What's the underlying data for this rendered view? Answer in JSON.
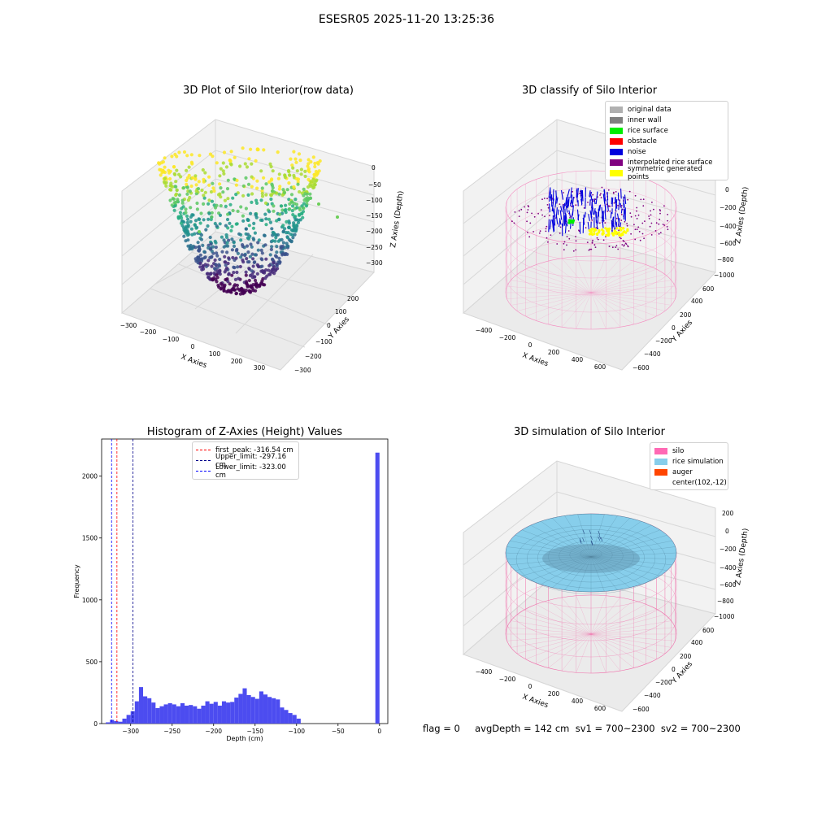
{
  "figure": {
    "title": "ESESR05 2025-11-20 13:25:36",
    "footer": "flag = 0     avgDepth = 142 cm  sv1 = 700~2300  sv2 = 700~2300"
  },
  "chart_data": [
    {
      "type": "scatter",
      "subtype": "3d",
      "title": "3D Plot of Silo Interior(row data)",
      "xlabel": "X Axies",
      "ylabel": "Y Axies",
      "zlabel": "Z Axies (Depth)",
      "xticks": [
        "−300",
        "−200",
        "−100",
        "0",
        "100",
        "200",
        "300"
      ],
      "yticks": [
        "−300",
        "−200",
        "−100",
        "0",
        "100",
        "200"
      ],
      "zticks": [
        "0",
        "−50",
        "−100",
        "−150",
        "−200",
        "−250",
        "−300"
      ],
      "xlim": [
        -320,
        340
      ],
      "ylim": [
        -320,
        260
      ],
      "zlim": [
        -330,
        10
      ],
      "colormap": "viridis"
    },
    {
      "type": "scatter",
      "subtype": "3d",
      "title": "3D classify of Silo Interior",
      "xlabel": "X Axies",
      "ylabel": "Y Axies",
      "zlabel": "Z Axies (Depth)",
      "xticks": [
        "−400",
        "−200",
        "0",
        "200",
        "400",
        "600"
      ],
      "yticks": [
        "−600",
        "−400",
        "−200",
        "0",
        "200",
        "400",
        "600"
      ],
      "zticks": [
        "0",
        "−200",
        "−400",
        "−600",
        "−800",
        "−1000"
      ],
      "legend": [
        {
          "label": "original data",
          "color": "#b0b0b0"
        },
        {
          "label": "inner wall",
          "color": "#808080"
        },
        {
          "label": "rice surface",
          "color": "#00ee00"
        },
        {
          "label": "obstacle",
          "color": "#ff0000"
        },
        {
          "label": "noise",
          "color": "#0000dd"
        },
        {
          "label": "interpolated rice surface",
          "color": "#800080"
        },
        {
          "label": "symmetric generated points",
          "color": "#ffff00"
        }
      ]
    },
    {
      "type": "bar",
      "subtype": "histogram",
      "title": "Histogram of Z-Axies (Height) Values",
      "xlabel": "Depth (cm)",
      "ylabel": "Frequency",
      "xlim": [
        -335,
        10
      ],
      "ylim": [
        0,
        2300
      ],
      "xticks": [
        -300,
        -250,
        -200,
        -150,
        -100,
        -50,
        0
      ],
      "yticks": [
        0,
        500,
        1000,
        1500,
        2000
      ],
      "bar_color": "#4c4cf0",
      "bin_width": 5,
      "bins": [
        {
          "x0": -330,
          "count": 10
        },
        {
          "x0": -325,
          "count": 30
        },
        {
          "x0": -320,
          "count": 20
        },
        {
          "x0": -315,
          "count": 15
        },
        {
          "x0": -310,
          "count": 40
        },
        {
          "x0": -305,
          "count": 70
        },
        {
          "x0": -300,
          "count": 100
        },
        {
          "x0": -295,
          "count": 180
        },
        {
          "x0": -290,
          "count": 295
        },
        {
          "x0": -285,
          "count": 220
        },
        {
          "x0": -280,
          "count": 205
        },
        {
          "x0": -275,
          "count": 170
        },
        {
          "x0": -270,
          "count": 125
        },
        {
          "x0": -265,
          "count": 140
        },
        {
          "x0": -260,
          "count": 155
        },
        {
          "x0": -255,
          "count": 165
        },
        {
          "x0": -250,
          "count": 155
        },
        {
          "x0": -245,
          "count": 140
        },
        {
          "x0": -240,
          "count": 165
        },
        {
          "x0": -235,
          "count": 145
        },
        {
          "x0": -230,
          "count": 150
        },
        {
          "x0": -225,
          "count": 140
        },
        {
          "x0": -220,
          "count": 120
        },
        {
          "x0": -215,
          "count": 145
        },
        {
          "x0": -210,
          "count": 180
        },
        {
          "x0": -205,
          "count": 160
        },
        {
          "x0": -200,
          "count": 175
        },
        {
          "x0": -195,
          "count": 145
        },
        {
          "x0": -190,
          "count": 180
        },
        {
          "x0": -185,
          "count": 170
        },
        {
          "x0": -180,
          "count": 175
        },
        {
          "x0": -175,
          "count": 210
        },
        {
          "x0": -170,
          "count": 240
        },
        {
          "x0": -165,
          "count": 285
        },
        {
          "x0": -160,
          "count": 230
        },
        {
          "x0": -155,
          "count": 215
        },
        {
          "x0": -150,
          "count": 200
        },
        {
          "x0": -145,
          "count": 260
        },
        {
          "x0": -140,
          "count": 235
        },
        {
          "x0": -135,
          "count": 215
        },
        {
          "x0": -130,
          "count": 205
        },
        {
          "x0": -125,
          "count": 195
        },
        {
          "x0": -120,
          "count": 130
        },
        {
          "x0": -115,
          "count": 110
        },
        {
          "x0": -110,
          "count": 85
        },
        {
          "x0": -105,
          "count": 70
        },
        {
          "x0": -100,
          "count": 40
        },
        {
          "x0": -5,
          "count": 2190
        }
      ],
      "vlines": [
        {
          "label": "first_peak: -316.54 cm",
          "x": -316.54,
          "color": "#ff0000"
        },
        {
          "label": "Upper_limit: -297.16 cm",
          "x": -297.16,
          "color": "#00008b"
        },
        {
          "label": "Lower_limit: -323.00 cm",
          "x": -323.0,
          "color": "#0000ff"
        }
      ]
    },
    {
      "type": "area",
      "subtype": "3d-surface",
      "title": "3D simulation of Silo Interior",
      "xlabel": "X Axies",
      "ylabel": "Y Axies",
      "zlabel": "Z Axies (Depth)",
      "xticks": [
        "−400",
        "−200",
        "0",
        "200",
        "400",
        "600"
      ],
      "yticks": [
        "−600",
        "−400",
        "−200",
        "0",
        "200",
        "400",
        "600"
      ],
      "zticks": [
        "200",
        "0",
        "−200",
        "−400",
        "−600",
        "−800",
        "−1000"
      ],
      "legend": [
        {
          "label": "silo",
          "color": "#ff69b4"
        },
        {
          "label": "rice simulation",
          "color": "#87ceeb"
        },
        {
          "label": "auger",
          "color": "#ff4500"
        },
        {
          "label": "center(102,-12)",
          "color": ""
        }
      ]
    }
  ]
}
